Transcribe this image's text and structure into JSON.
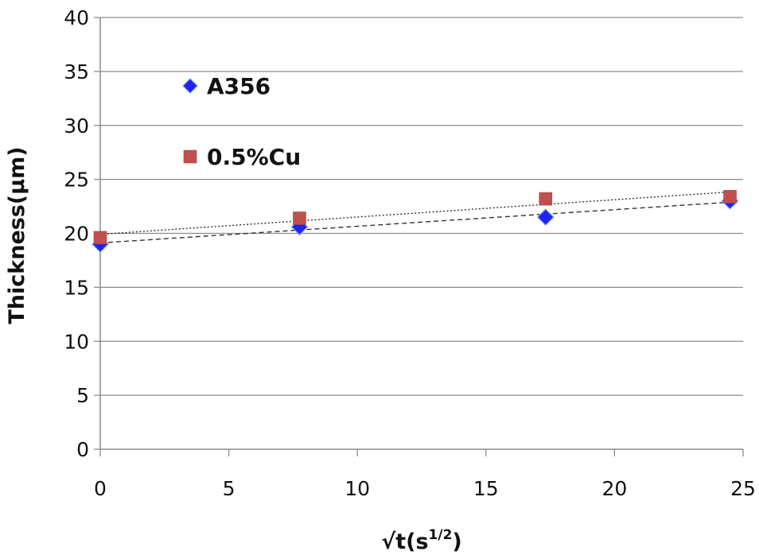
{
  "chart_data": {
    "type": "scatter",
    "title": "",
    "xlabel": "√t(s",
    "xlabel_sup": "1/2",
    "xlabel_suffix": ")",
    "ylabel": "Thickness(μm)",
    "xlim": [
      0,
      25
    ],
    "ylim": [
      0,
      40
    ],
    "x_ticks": [
      "0",
      "5",
      "10",
      "15",
      "20",
      "25"
    ],
    "y_ticks": [
      "0",
      "5",
      "10",
      "15",
      "20",
      "25",
      "30",
      "35",
      "40"
    ],
    "grid": "horizontal",
    "legend_position": "top-left inside plot",
    "series": [
      {
        "name": "A356",
        "marker": "diamond",
        "color": "#2222ee",
        "x": [
          0,
          7.75,
          17.32,
          24.49
        ],
        "y": [
          19.0,
          20.6,
          21.5,
          23.0
        ],
        "trendline": "linear",
        "trendline_style": "dashed"
      },
      {
        "name": "0.5%Cu",
        "marker": "square",
        "color": "#c0504d",
        "x": [
          0,
          7.75,
          17.32,
          24.49
        ],
        "y": [
          19.6,
          21.4,
          23.2,
          23.4
        ],
        "trendline": "linear",
        "trendline_style": "dotted"
      }
    ]
  }
}
